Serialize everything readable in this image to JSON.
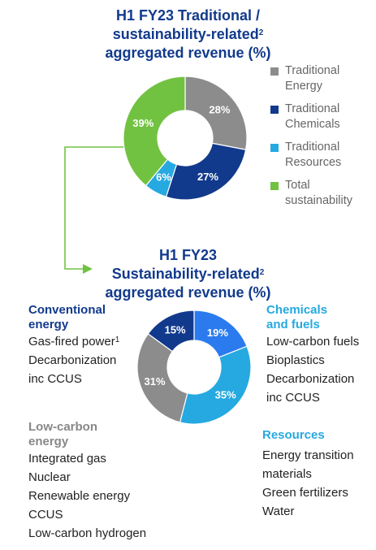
{
  "top_chart": {
    "title_lines": [
      "H1 FY23 Traditional /",
      "sustainability-related",
      "aggregated revenue (%)"
    ],
    "title_sup": "2"
  },
  "bottom_chart": {
    "title_lines": [
      "H1 FY23",
      "Sustainability-related",
      "aggregated revenue (%)"
    ],
    "title_sup": "2"
  },
  "legend": [
    {
      "label": "Traditional Energy",
      "color": "#8c8c8c"
    },
    {
      "label": "Traditional Chemicals",
      "color": "#123a8c"
    },
    {
      "label": "Traditional Resources",
      "color": "#26a9e0"
    },
    {
      "label": "Total sustainability",
      "color": "#72c242"
    }
  ],
  "segments": {
    "conventional": {
      "heading": "Conventional energy",
      "items": [
        "Gas-fired power",
        "Decarbonization inc CCUS"
      ],
      "item_sup": "1"
    },
    "low_carbon": {
      "heading": "Low-carbon energy",
      "items": [
        "Integrated gas",
        "Nuclear",
        "Renewable energy",
        "CCUS",
        "Low-carbon hydrogen"
      ]
    },
    "chemicals": {
      "heading": "Chemicals and fuels",
      "items": [
        "Low-carbon fuels",
        "Bioplastics",
        "Decarbonization inc CCUS"
      ]
    },
    "resources": {
      "heading": "Resources",
      "items": [
        "Energy transition materials",
        "Green fertilizers",
        "Water"
      ]
    }
  },
  "chart_data": [
    {
      "type": "pie",
      "donut": true,
      "title": "H1 FY23 Traditional / sustainability-related² aggregated revenue (%)",
      "categories": [
        "Traditional Energy",
        "Traditional Chemicals",
        "Traditional Resources",
        "Total sustainability"
      ],
      "values": [
        28,
        27,
        6,
        39
      ],
      "labels": [
        "28%",
        "27%",
        "6%",
        "39%"
      ],
      "colors": [
        "#8c8c8c",
        "#123a8c",
        "#26a9e0",
        "#72c242"
      ],
      "legend": "right"
    },
    {
      "type": "pie",
      "donut": true,
      "title": "H1 FY23 Sustainability-related² aggregated revenue (%)",
      "categories": [
        "Chemicals and fuels",
        "Resources",
        "Low-carbon energy",
        "Conventional energy"
      ],
      "values": [
        19,
        35,
        31,
        15
      ],
      "labels": [
        "19%",
        "35%",
        "31%",
        "15%"
      ],
      "colors": [
        "#2b7bef",
        "#26a9e0",
        "#8c8c8c",
        "#123a8c"
      ]
    }
  ]
}
